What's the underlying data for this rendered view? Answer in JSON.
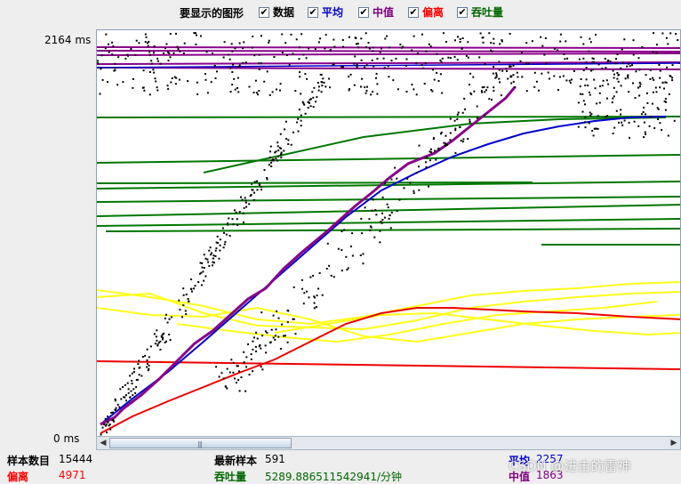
{
  "legend": {
    "title": "要显示的图形",
    "items": [
      {
        "label": "数据",
        "color": "#000000",
        "checked": true
      },
      {
        "label": "平均",
        "color": "#0000cc",
        "checked": true
      },
      {
        "label": "中值",
        "color": "#800080",
        "checked": true
      },
      {
        "label": "偏离",
        "color": "#ff0000",
        "checked": true
      },
      {
        "label": "吞吐量",
        "color": "#006600",
        "checked": true
      }
    ]
  },
  "axis": {
    "max_label": "2164 ms",
    "min_label": "0 ms"
  },
  "status": {
    "sample_count_label": "样本数目",
    "sample_count_value": "15444",
    "deviation_label": "偏离",
    "deviation_value": "4971",
    "latest_sample_label": "最新样本",
    "latest_sample_value": "591",
    "throughput_label": "吞吐量",
    "throughput_value": "5289.886511542941/分钟",
    "average_label": "平均",
    "average_value": "2257",
    "median_label": "中值",
    "median_value": "1863"
  },
  "watermark": "CSDN @进击的雷神",
  "colors": {
    "data": "#000000",
    "average": "#0000cc",
    "median": "#800080",
    "deviation": "#ff0000",
    "throughput": "#006600",
    "yellow": "#ffff00"
  }
}
